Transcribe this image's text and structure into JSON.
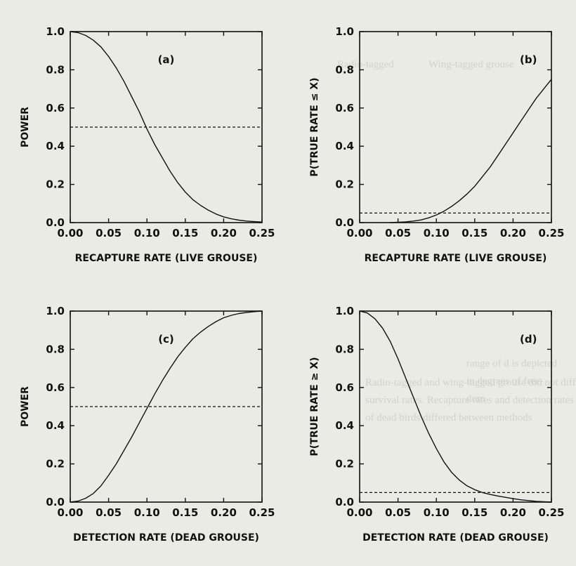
{
  "background_text": {
    "header_mid": "Wing-tagged grouse",
    "header_left": "Radio-tagged",
    "para_1": "Radio-tagged and wing-tagged grouse did not differ in",
    "para_2": "survival rates. Recapture rates and detection rates",
    "para_3": "of dead birds differed between methods",
    "left_1": "range of d is depicted",
    "left_2": "in degrees of free-",
    "left_3": "dom"
  },
  "chart_data": [
    {
      "panel": "(a)",
      "type": "line",
      "xlabel": "RECAPTURE RATE (LIVE GROUSE)",
      "ylabel": "POWER",
      "xlim": [
        0,
        0.25
      ],
      "ylim": [
        0,
        1.0
      ],
      "xticks": [
        "0.00",
        "0.05",
        "0.10",
        "0.15",
        "0.20",
        "0.25"
      ],
      "yticks": [
        "0.0",
        "0.2",
        "0.4",
        "0.6",
        "0.8",
        "1.0"
      ],
      "reference_line": 0.5,
      "curve": {
        "x": [
          0,
          0.01,
          0.02,
          0.03,
          0.04,
          0.05,
          0.06,
          0.07,
          0.08,
          0.09,
          0.1,
          0.11,
          0.12,
          0.13,
          0.14,
          0.15,
          0.16,
          0.17,
          0.18,
          0.19,
          0.2,
          0.21,
          0.22,
          0.23,
          0.24,
          0.25
        ],
        "y": [
          1.0,
          0.995,
          0.98,
          0.955,
          0.92,
          0.87,
          0.81,
          0.74,
          0.66,
          0.58,
          0.49,
          0.41,
          0.34,
          0.27,
          0.21,
          0.16,
          0.12,
          0.09,
          0.065,
          0.045,
          0.03,
          0.02,
          0.013,
          0.008,
          0.005,
          0.003
        ]
      }
    },
    {
      "panel": "(b)",
      "type": "line",
      "xlabel": "RECAPTURE RATE (LIVE GROUSE)",
      "ylabel": "P(TRUE RATE ≤ X)",
      "xlim": [
        0,
        0.25
      ],
      "ylim": [
        0,
        1.0
      ],
      "xticks": [
        "0.00",
        "0.05",
        "0.10",
        "0.15",
        "0.20",
        "0.25"
      ],
      "yticks": [
        "0.0",
        "0.2",
        "0.4",
        "0.6",
        "0.8",
        "1.0"
      ],
      "reference_line": 0.05,
      "curve": {
        "x": [
          0.04,
          0.05,
          0.06,
          0.07,
          0.08,
          0.09,
          0.1,
          0.11,
          0.12,
          0.13,
          0.14,
          0.15,
          0.16,
          0.17,
          0.18,
          0.19,
          0.2,
          0.21,
          0.22,
          0.23,
          0.24,
          0.25
        ],
        "y": [
          0.0,
          0.002,
          0.004,
          0.008,
          0.014,
          0.025,
          0.04,
          0.06,
          0.085,
          0.115,
          0.15,
          0.19,
          0.24,
          0.29,
          0.35,
          0.41,
          0.47,
          0.53,
          0.59,
          0.65,
          0.7,
          0.75
        ]
      }
    },
    {
      "panel": "(c)",
      "type": "line",
      "xlabel": "DETECTION RATE (DEAD GROUSE)",
      "ylabel": "POWER",
      "xlim": [
        0,
        0.25
      ],
      "ylim": [
        0,
        1.0
      ],
      "xticks": [
        "0.00",
        "0.05",
        "0.10",
        "0.15",
        "0.20",
        "0.25"
      ],
      "yticks": [
        "0.0",
        "0.2",
        "0.4",
        "0.6",
        "0.8",
        "1.0"
      ],
      "reference_line": 0.5,
      "curve": {
        "x": [
          0,
          0.01,
          0.02,
          0.03,
          0.04,
          0.05,
          0.06,
          0.07,
          0.08,
          0.09,
          0.1,
          0.11,
          0.12,
          0.13,
          0.14,
          0.15,
          0.16,
          0.17,
          0.18,
          0.19,
          0.2,
          0.21,
          0.22,
          0.23,
          0.24,
          0.25
        ],
        "y": [
          0.0,
          0.005,
          0.02,
          0.045,
          0.085,
          0.14,
          0.2,
          0.27,
          0.34,
          0.415,
          0.49,
          0.565,
          0.635,
          0.7,
          0.76,
          0.81,
          0.855,
          0.89,
          0.92,
          0.945,
          0.965,
          0.978,
          0.987,
          0.993,
          0.997,
          1.0
        ]
      }
    },
    {
      "panel": "(d)",
      "type": "line",
      "xlabel": "DETECTION RATE (DEAD GROUSE)",
      "ylabel": "P(TRUE RATE ≥ X)",
      "xlim": [
        0,
        0.25
      ],
      "ylim": [
        0,
        1.0
      ],
      "xticks": [
        "0.00",
        "0.05",
        "0.10",
        "0.15",
        "0.20",
        "0.25"
      ],
      "yticks": [
        "0.0",
        "0.2",
        "0.4",
        "0.6",
        "0.8",
        "1.0"
      ],
      "reference_line": 0.05,
      "curve": {
        "x": [
          0,
          0.01,
          0.02,
          0.03,
          0.04,
          0.05,
          0.06,
          0.07,
          0.08,
          0.09,
          0.1,
          0.11,
          0.12,
          0.13,
          0.14,
          0.15,
          0.16,
          0.17,
          0.18,
          0.19,
          0.2,
          0.21,
          0.22,
          0.23,
          0.24,
          0.25
        ],
        "y": [
          1.0,
          0.99,
          0.96,
          0.91,
          0.84,
          0.75,
          0.65,
          0.55,
          0.45,
          0.36,
          0.28,
          0.21,
          0.155,
          0.115,
          0.085,
          0.065,
          0.05,
          0.04,
          0.032,
          0.025,
          0.018,
          0.012,
          0.008,
          0.004,
          0.002,
          0.0
        ]
      }
    }
  ]
}
